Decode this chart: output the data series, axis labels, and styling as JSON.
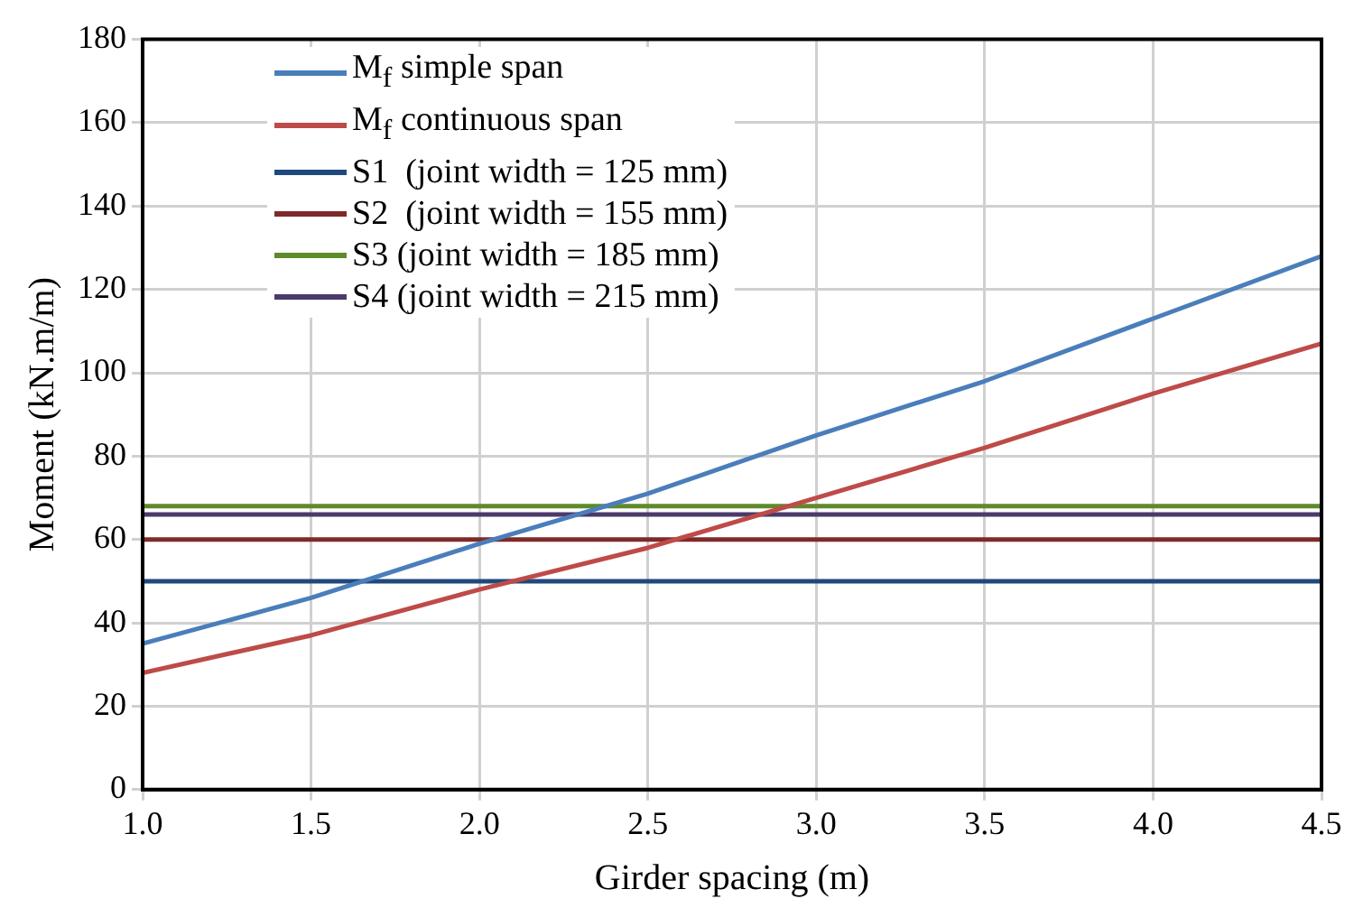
{
  "chart_data": {
    "type": "line",
    "xlabel": "Girder spacing (m)",
    "ylabel": "Moment (kN.m/m)",
    "x": [
      1.0,
      1.5,
      2.0,
      2.5,
      3.0,
      3.5,
      4.0,
      4.5
    ],
    "series": [
      {
        "name": "M$_{f}$ simple span",
        "color": "#4a7ebb",
        "values": [
          35,
          46,
          59,
          71,
          85,
          98,
          113,
          128
        ]
      },
      {
        "name": "M$_{f}$ continuous span",
        "color": "#be4b48",
        "values": [
          28,
          37,
          48,
          58,
          70,
          82,
          95,
          107
        ]
      },
      {
        "name": "S1  (joint width = 125 mm)",
        "color": "#1f497d",
        "values": [
          50,
          50,
          50,
          50,
          50,
          50,
          50,
          50
        ]
      },
      {
        "name": "S2  (joint width = 155 mm)",
        "color": "#7f2a2a",
        "values": [
          60,
          60,
          60,
          60,
          60,
          60,
          60,
          60
        ]
      },
      {
        "name": "S3 (joint width = 185 mm)",
        "color": "#5f8a2a",
        "values": [
          68,
          68,
          68,
          68,
          68,
          68,
          68,
          68
        ]
      },
      {
        "name": "S4 (joint width = 215 mm)",
        "color": "#4b3a6b",
        "values": [
          66,
          66,
          66,
          66,
          66,
          66,
          66,
          66
        ]
      }
    ],
    "xlim": [
      1.0,
      4.5
    ],
    "xticks": [
      {
        "value": 1,
        "label": "1.0"
      },
      {
        "value": 1.5,
        "label": "1.5"
      },
      {
        "value": 2,
        "label": "2.0"
      },
      {
        "value": 2.5,
        "label": "2.5"
      },
      {
        "value": 3,
        "label": "3.0"
      },
      {
        "value": 3.5,
        "label": "3.5"
      },
      {
        "value": 4,
        "label": "4.0"
      },
      {
        "value": 4.5,
        "label": "4.5"
      }
    ],
    "ylim": [
      0,
      180
    ],
    "yticks": [
      0,
      20,
      40,
      60,
      80,
      100,
      120,
      140,
      160,
      180
    ],
    "grid": true,
    "legend": "top left",
    "marker": "none",
    "line_style": "solid"
  }
}
